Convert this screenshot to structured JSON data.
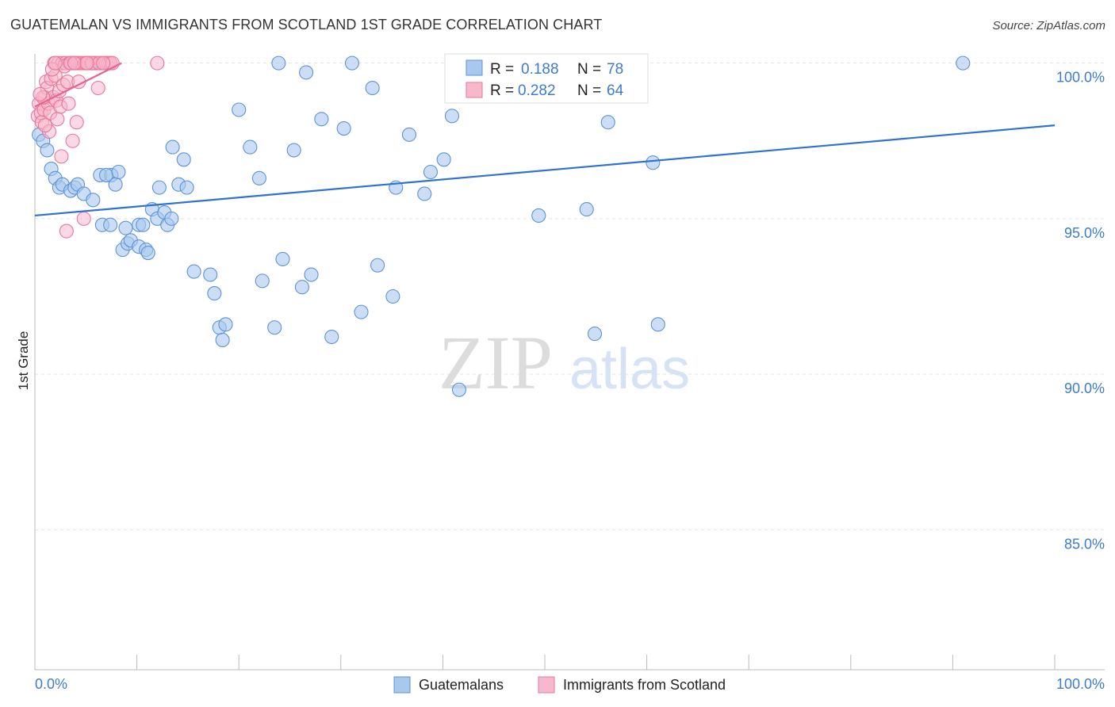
{
  "header": {
    "title": "GUATEMALAN VS IMMIGRANTS FROM SCOTLAND 1ST GRADE CORRELATION CHART",
    "source": "Source: ZipAtlas.com"
  },
  "watermark": {
    "zip": "ZIP",
    "atlas": "atlas"
  },
  "colors": {
    "blue_fill": "#a9c8ee",
    "blue_stroke": "#5e93d6",
    "blue_line": "#2f72cf",
    "pink_fill": "#f7b8cc",
    "pink_stroke": "#e9769c",
    "pink_line": "#e5658f",
    "tick_text": "#3d7bd1",
    "grid": "#e3e3e3"
  },
  "stats_legend": {
    "rows": [
      {
        "r_label": "R = ",
        "r_value": "0.188",
        "n_label": "N = ",
        "n_value": "78"
      },
      {
        "r_label": "R = ",
        "r_value": "0.282",
        "n_label": "N = ",
        "n_value": "64"
      }
    ]
  },
  "bottom_legend": {
    "items": [
      {
        "label": "Guatemalans"
      },
      {
        "label": "Immigrants from Scotland"
      }
    ]
  },
  "chart_data": {
    "type": "scatter",
    "title": "GUATEMALAN VS IMMIGRANTS FROM SCOTLAND 1ST GRADE CORRELATION CHART",
    "xlabel": "",
    "ylabel": "1st Grade",
    "xlim": [
      0,
      100
    ],
    "ylim": [
      80.5,
      100.5
    ],
    "x_tick_labels": [
      "0.0%",
      "100.0%"
    ],
    "y_ticks": [
      100,
      95,
      90,
      85
    ],
    "y_tick_labels": [
      "100.0%",
      "95.0%",
      "90.0%",
      "85.0%"
    ],
    "grid": true,
    "legend_position": "top-center",
    "series": [
      {
        "name": "Guatemalans",
        "R": 0.188,
        "N": 78,
        "trend_line": {
          "x": [
            0,
            100
          ],
          "y": [
            95.1,
            98.0
          ]
        },
        "points": [
          [
            0.4,
            97.7
          ],
          [
            0.8,
            97.5
          ],
          [
            1.2,
            97.2
          ],
          [
            1.6,
            96.6
          ],
          [
            2.0,
            96.3
          ],
          [
            2.4,
            96.0
          ],
          [
            2.7,
            96.1
          ],
          [
            3.5,
            95.9
          ],
          [
            3.9,
            96.0
          ],
          [
            4.2,
            96.1
          ],
          [
            4.8,
            95.8
          ],
          [
            5.7,
            95.6
          ],
          [
            6.4,
            96.4
          ],
          [
            7.5,
            96.4
          ],
          [
            7.9,
            96.1
          ],
          [
            7.0,
            96.4
          ],
          [
            6.6,
            94.8
          ],
          [
            7.4,
            94.8
          ],
          [
            8.2,
            96.5
          ],
          [
            8.6,
            94.0
          ],
          [
            8.9,
            94.7
          ],
          [
            9.1,
            94.2
          ],
          [
            9.4,
            94.3
          ],
          [
            10.2,
            94.8
          ],
          [
            10.6,
            94.8
          ],
          [
            10.2,
            94.1
          ],
          [
            10.9,
            94.0
          ],
          [
            11.1,
            93.9
          ],
          [
            11.5,
            95.3
          ],
          [
            12.0,
            95.0
          ],
          [
            12.2,
            96.0
          ],
          [
            12.7,
            95.2
          ],
          [
            13.0,
            94.8
          ],
          [
            13.4,
            95.0
          ],
          [
            13.5,
            97.3
          ],
          [
            14.1,
            96.1
          ],
          [
            14.6,
            96.9
          ],
          [
            14.9,
            96.0
          ],
          [
            15.6,
            93.3
          ],
          [
            17.2,
            93.2
          ],
          [
            17.6,
            92.6
          ],
          [
            18.1,
            91.5
          ],
          [
            18.4,
            91.1
          ],
          [
            18.7,
            91.6
          ],
          [
            20.0,
            98.5
          ],
          [
            21.1,
            97.3
          ],
          [
            22.0,
            96.3
          ],
          [
            22.3,
            93.0
          ],
          [
            23.5,
            91.5
          ],
          [
            23.9,
            100.0
          ],
          [
            24.3,
            93.7
          ],
          [
            25.4,
            97.2
          ],
          [
            26.2,
            92.8
          ],
          [
            26.6,
            99.7
          ],
          [
            27.1,
            93.2
          ],
          [
            28.1,
            98.2
          ],
          [
            29.1,
            91.2
          ],
          [
            30.3,
            97.9
          ],
          [
            31.1,
            100.0
          ],
          [
            32.0,
            92.0
          ],
          [
            33.1,
            99.2
          ],
          [
            33.6,
            93.5
          ],
          [
            35.1,
            92.5
          ],
          [
            35.4,
            96.0
          ],
          [
            36.7,
            97.7
          ],
          [
            38.2,
            95.8
          ],
          [
            38.8,
            96.5
          ],
          [
            40.1,
            96.9
          ],
          [
            40.9,
            98.3
          ],
          [
            41.6,
            89.5
          ],
          [
            45.0,
            100.0
          ],
          [
            49.4,
            95.1
          ],
          [
            54.1,
            95.3
          ],
          [
            54.9,
            91.3
          ],
          [
            56.2,
            98.1
          ],
          [
            60.6,
            96.8
          ],
          [
            61.1,
            91.6
          ],
          [
            91.0,
            100.0
          ]
        ]
      },
      {
        "name": "Immigrants from Scotland",
        "R": 0.282,
        "N": 64,
        "trend_line": {
          "x": [
            0,
            8.5
          ],
          "y": [
            98.6,
            100.0
          ]
        },
        "points": [
          [
            0.3,
            98.3
          ],
          [
            0.4,
            98.7
          ],
          [
            0.6,
            98.4
          ],
          [
            0.7,
            98.1
          ],
          [
            0.9,
            98.5
          ],
          [
            1.0,
            98.9
          ],
          [
            1.1,
            99.4
          ],
          [
            1.2,
            99.2
          ],
          [
            1.3,
            98.7
          ],
          [
            1.5,
            98.4
          ],
          [
            1.6,
            99.5
          ],
          [
            1.8,
            98.9
          ],
          [
            1.9,
            100.0
          ],
          [
            2.0,
            99.6
          ],
          [
            2.1,
            98.8
          ],
          [
            2.3,
            100.0
          ],
          [
            2.4,
            99.1
          ],
          [
            2.5,
            98.6
          ],
          [
            2.6,
            97.0
          ],
          [
            2.7,
            100.0
          ],
          [
            2.8,
            99.3
          ],
          [
            3.0,
            100.0
          ],
          [
            3.2,
            99.4
          ],
          [
            3.3,
            98.7
          ],
          [
            3.4,
            100.0
          ],
          [
            3.6,
            100.0
          ],
          [
            3.7,
            97.5
          ],
          [
            3.8,
            100.0
          ],
          [
            4.0,
            100.0
          ],
          [
            4.1,
            98.1
          ],
          [
            4.2,
            100.0
          ],
          [
            4.4,
            100.0
          ],
          [
            4.6,
            100.0
          ],
          [
            4.8,
            95.0
          ],
          [
            5.0,
            100.0
          ],
          [
            5.3,
            100.0
          ],
          [
            5.5,
            100.0
          ],
          [
            5.8,
            100.0
          ],
          [
            6.0,
            100.0
          ],
          [
            6.2,
            99.2
          ],
          [
            6.5,
            100.0
          ],
          [
            6.8,
            100.0
          ],
          [
            7.0,
            100.0
          ],
          [
            7.2,
            100.0
          ],
          [
            7.4,
            100.0
          ],
          [
            7.6,
            100.0
          ],
          [
            3.1,
            94.6
          ],
          [
            2.2,
            98.2
          ],
          [
            1.4,
            97.8
          ],
          [
            0.8,
            98.9
          ],
          [
            1.7,
            99.8
          ],
          [
            2.9,
            99.9
          ],
          [
            3.5,
            100.0
          ],
          [
            4.3,
            99.4
          ],
          [
            4.9,
            100.0
          ],
          [
            5.6,
            100.0
          ],
          [
            6.3,
            100.0
          ],
          [
            12.0,
            100.0
          ],
          [
            1.0,
            98.0
          ],
          [
            0.5,
            99.0
          ],
          [
            2.0,
            100.0
          ],
          [
            3.9,
            100.0
          ],
          [
            5.1,
            100.0
          ],
          [
            6.7,
            100.0
          ]
        ]
      }
    ]
  }
}
